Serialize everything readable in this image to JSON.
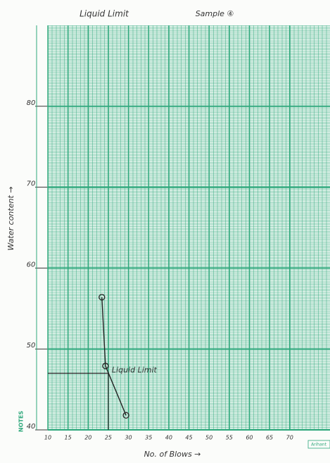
{
  "chart_data": {
    "type": "line",
    "title": "Liquid Limit",
    "subtitle": "Sample ④",
    "x_label": "No. of Blows →",
    "y_label": "Water content →",
    "x": [
      23.4,
      24.3,
      29.4
    ],
    "values": [
      56.4,
      47.9,
      41.8
    ],
    "color": "#222222",
    "grid_color": "#2fa87c",
    "xlim": [
      10,
      80
    ],
    "xticks": [
      10,
      15,
      20,
      25,
      30,
      35,
      40,
      45,
      50,
      55,
      60,
      65,
      70
    ],
    "ylim": [
      40,
      90
    ],
    "yticks": [
      40,
      50,
      60,
      70,
      80
    ],
    "grid": true,
    "annotations": [
      {
        "text": "Liquid Limit",
        "x": 25,
        "y": 47
      }
    ],
    "margin_note": "NOTES",
    "brand": "Arihant"
  }
}
